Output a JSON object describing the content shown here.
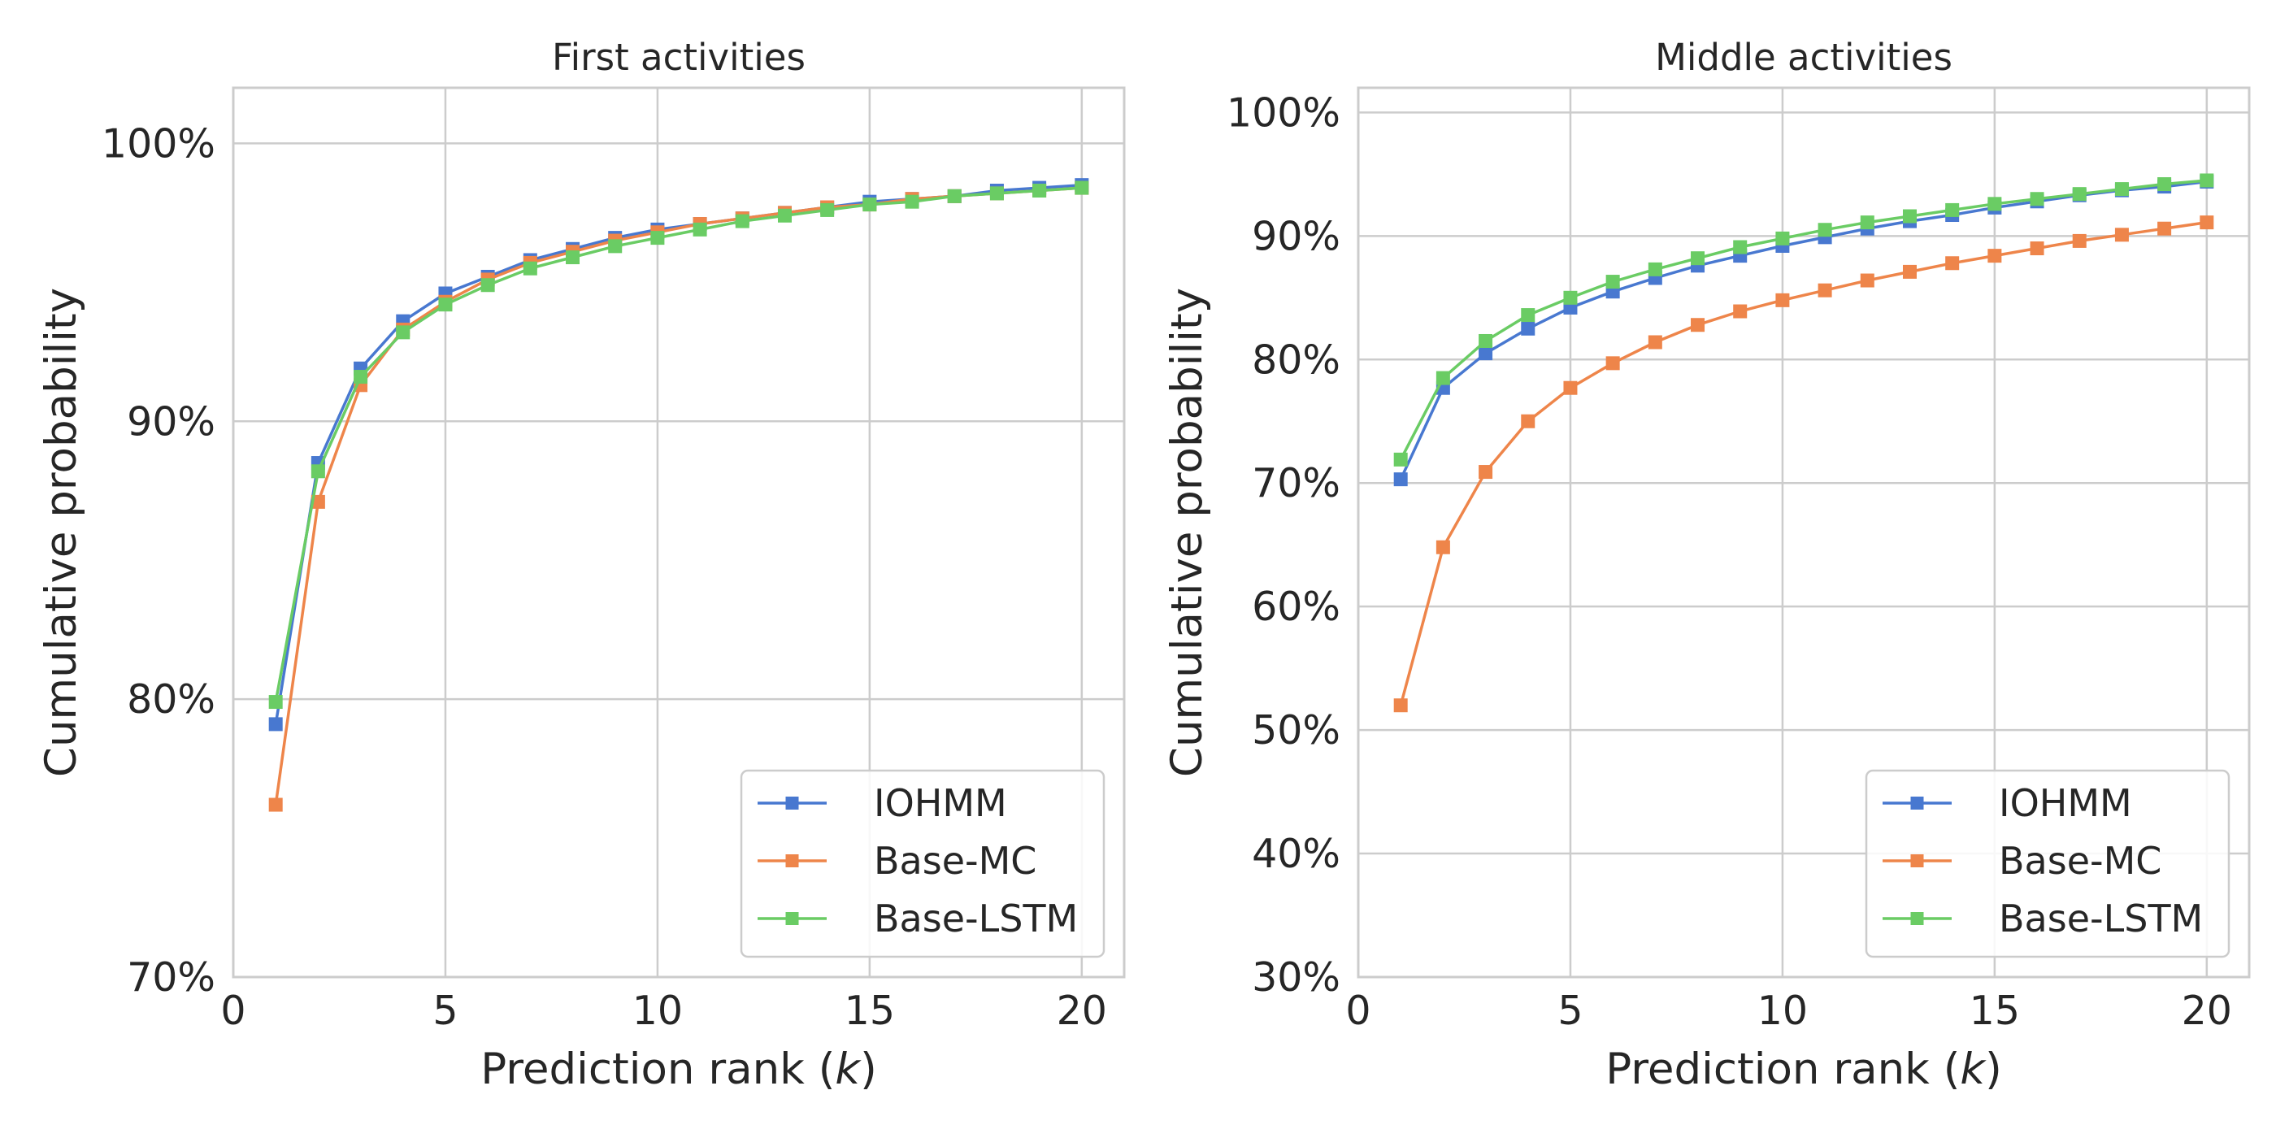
{
  "colors": {
    "IOHMM": "#4878d0",
    "Base-MC": "#ee854a",
    "Base-LSTM": "#6acc64"
  },
  "chart_data": [
    {
      "type": "line",
      "title": "First activities",
      "xlabel": "Prediction rank (k)",
      "ylabel": "Cumulative probability",
      "xlim": [
        0,
        21
      ],
      "ylim": [
        70,
        102
      ],
      "xticks": [
        0,
        5,
        10,
        15,
        20
      ],
      "yticks": [
        70,
        80,
        90,
        100
      ],
      "ytick_labels": [
        "70%",
        "80%",
        "90%",
        "100%"
      ],
      "grid": true,
      "legend_position": "lower-right",
      "x": [
        1,
        2,
        3,
        4,
        5,
        6,
        7,
        8,
        9,
        10,
        11,
        12,
        13,
        14,
        15,
        16,
        17,
        18,
        19,
        20
      ],
      "series": [
        {
          "name": "IOHMM",
          "values": [
            79.1,
            88.5,
            91.9,
            93.6,
            94.6,
            95.2,
            95.8,
            96.2,
            96.6,
            96.9,
            97.1,
            97.3,
            97.5,
            97.7,
            97.9,
            98.0,
            98.1,
            98.3,
            98.4,
            98.5
          ]
        },
        {
          "name": "Base-MC",
          "values": [
            76.2,
            87.1,
            91.3,
            93.3,
            94.3,
            95.1,
            95.7,
            96.1,
            96.5,
            96.8,
            97.1,
            97.3,
            97.5,
            97.7,
            97.8,
            98.0,
            98.1,
            98.2,
            98.3,
            98.4
          ]
        },
        {
          "name": "Base-LSTM",
          "values": [
            79.9,
            88.2,
            91.6,
            93.2,
            94.2,
            94.9,
            95.5,
            95.9,
            96.3,
            96.6,
            96.9,
            97.2,
            97.4,
            97.6,
            97.8,
            97.9,
            98.1,
            98.2,
            98.3,
            98.4
          ]
        }
      ]
    },
    {
      "type": "line",
      "title": "Middle activities",
      "xlabel": "Prediction rank (k)",
      "ylabel": "Cumulative probability",
      "xlim": [
        0,
        21
      ],
      "ylim": [
        30,
        102
      ],
      "xticks": [
        0,
        5,
        10,
        15,
        20
      ],
      "yticks": [
        30,
        40,
        50,
        60,
        70,
        80,
        90,
        100
      ],
      "ytick_labels": [
        "30%",
        "40%",
        "50%",
        "60%",
        "70%",
        "80%",
        "90%",
        "100%"
      ],
      "grid": true,
      "legend_position": "lower-right",
      "x": [
        1,
        2,
        3,
        4,
        5,
        6,
        7,
        8,
        9,
        10,
        11,
        12,
        13,
        14,
        15,
        16,
        17,
        18,
        19,
        20
      ],
      "series": [
        {
          "name": "IOHMM",
          "values": [
            70.3,
            77.7,
            80.5,
            82.5,
            84.2,
            85.5,
            86.6,
            87.6,
            88.4,
            89.2,
            89.9,
            90.6,
            91.2,
            91.7,
            92.3,
            92.8,
            93.3,
            93.7,
            94.0,
            94.4
          ]
        },
        {
          "name": "Base-MC",
          "values": [
            52.0,
            64.8,
            70.9,
            75.0,
            77.7,
            79.7,
            81.4,
            82.8,
            83.9,
            84.8,
            85.6,
            86.4,
            87.1,
            87.8,
            88.4,
            89.0,
            89.6,
            90.1,
            90.6,
            91.1
          ]
        },
        {
          "name": "Base-LSTM",
          "values": [
            71.9,
            78.5,
            81.5,
            83.6,
            85.0,
            86.3,
            87.3,
            88.2,
            89.1,
            89.8,
            90.5,
            91.1,
            91.6,
            92.1,
            92.6,
            93.0,
            93.4,
            93.8,
            94.2,
            94.5
          ]
        }
      ]
    }
  ]
}
